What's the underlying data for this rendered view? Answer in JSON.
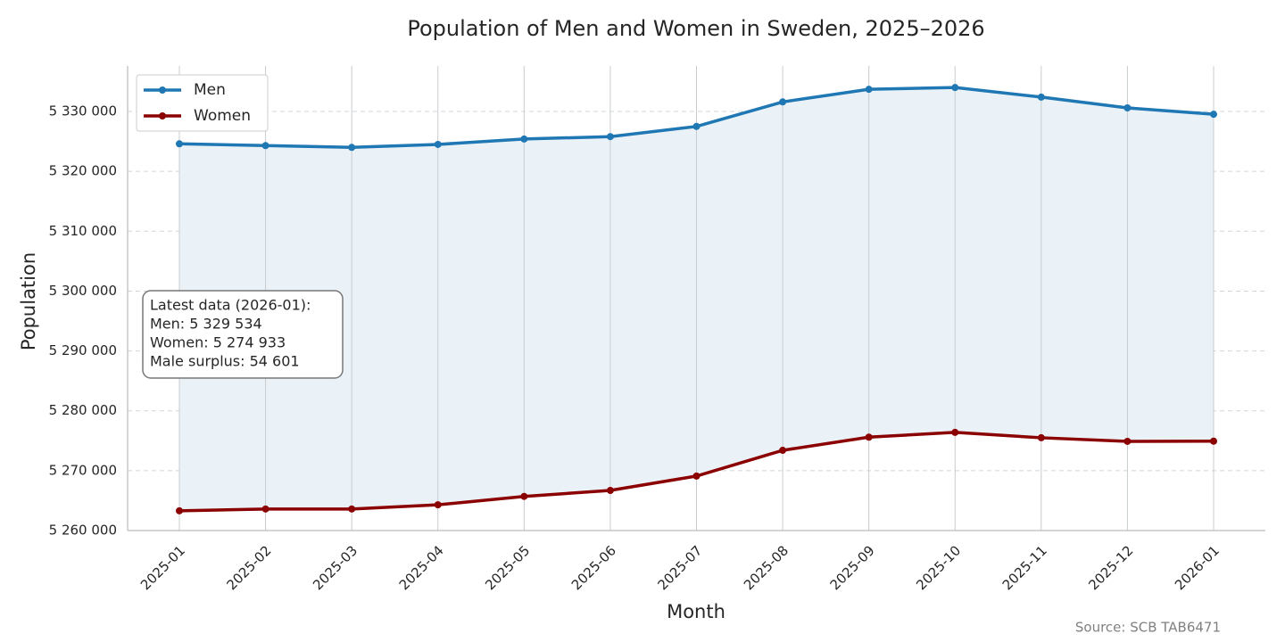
{
  "chart_data": {
    "type": "line",
    "title": "Population of Men and Women in Sweden, 2025–2026",
    "x_label": "Month",
    "y_label": "Population",
    "categories": [
      "2025-01",
      "2025-02",
      "2025-03",
      "2025-04",
      "2025-05",
      "2025-06",
      "2025-07",
      "2025-08",
      "2025-09",
      "2025-10",
      "2025-11",
      "2025-12",
      "2026-01"
    ],
    "series": [
      {
        "name": "Men",
        "color": "#1f77b4",
        "values": [
          5324600,
          5324300,
          5324000,
          5324500,
          5325400,
          5325800,
          5327500,
          5331600,
          5333700,
          5334000,
          5332400,
          5330600,
          5329534
        ]
      },
      {
        "name": "Women",
        "color": "#8b0000",
        "values": [
          5263300,
          5263600,
          5263600,
          5264300,
          5265700,
          5266700,
          5269100,
          5273400,
          5275600,
          5276400,
          5275500,
          5274900,
          5274933
        ]
      }
    ],
    "fill_between_color": "#eaf2f8",
    "ylim": [
      5260000,
      5337600
    ],
    "yticks": [
      {
        "value": 5260000,
        "label": "5 260 000"
      },
      {
        "value": 5270000,
        "label": "5 270 000"
      },
      {
        "value": 5280000,
        "label": "5 280 000"
      },
      {
        "value": 5290000,
        "label": "5 290 000"
      },
      {
        "value": 5300000,
        "label": "5 300 000"
      },
      {
        "value": 5310000,
        "label": "5 310 000"
      },
      {
        "value": 5320000,
        "label": "5 320 000"
      },
      {
        "value": 5330000,
        "label": "5 330 000"
      }
    ],
    "grid": true,
    "legend": "upper left",
    "annotation": [
      "Latest data (2026-01):",
      "Men: 5 329 534",
      "Women: 5 274 933",
      "Male surplus: 54 601"
    ],
    "source": "Source: SCB TAB6471"
  }
}
